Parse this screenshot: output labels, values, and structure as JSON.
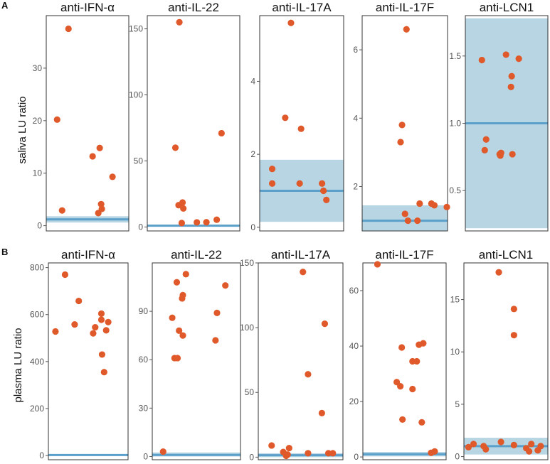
{
  "colors": {
    "point": "#e0592a",
    "band": "#b7d5e2",
    "line": "#5b9fcb",
    "frame": "#333333"
  },
  "chart_data": [
    {
      "panel": "A",
      "title": "anti-IFN-α",
      "type": "scatter",
      "ylabel": "saliva LU ratio",
      "ylim": [
        -1,
        40
      ],
      "yticks": [
        0,
        10,
        20,
        30
      ],
      "threshold": 1.2,
      "band": [
        0.6,
        1.8
      ],
      "points": [
        {
          "x": 0.13,
          "y": 20.2
        },
        {
          "x": 0.29,
          "y": 37.5
        },
        {
          "x": 0.2,
          "y": 2.9
        },
        {
          "x": 0.63,
          "y": 13.2
        },
        {
          "x": 0.73,
          "y": 14.8
        },
        {
          "x": 0.91,
          "y": 9.3
        },
        {
          "x": 0.75,
          "y": 4.1
        },
        {
          "x": 0.76,
          "y": 3.2
        },
        {
          "x": 0.71,
          "y": 2.4
        }
      ]
    },
    {
      "panel": "A",
      "title": "anti-IL-22",
      "type": "scatter",
      "ylim": [
        -3,
        160
      ],
      "yticks": [
        0,
        50,
        100,
        150
      ],
      "threshold": 1.0,
      "band": [
        0.2,
        1.8
      ],
      "points": [
        {
          "x": 0.38,
          "y": 155.0
        },
        {
          "x": 0.91,
          "y": 71.0
        },
        {
          "x": 0.33,
          "y": 60.0
        },
        {
          "x": 0.42,
          "y": 18.5
        },
        {
          "x": 0.37,
          "y": 16.5
        },
        {
          "x": 0.43,
          "y": 14.0
        },
        {
          "x": 0.41,
          "y": 3.0
        },
        {
          "x": 0.6,
          "y": 3.5
        },
        {
          "x": 0.72,
          "y": 3.6
        },
        {
          "x": 0.85,
          "y": 5.5
        }
      ]
    },
    {
      "panel": "A",
      "title": "anti-IL-17A",
      "type": "scatter",
      "ylim": [
        -0.1,
        5.8
      ],
      "yticks": [
        0,
        2,
        4
      ],
      "threshold": 1.0,
      "band": [
        0.15,
        1.85
      ],
      "points": [
        {
          "x": 0.41,
          "y": 5.6
        },
        {
          "x": 0.33,
          "y": 3.0
        },
        {
          "x": 0.55,
          "y": 2.7
        },
        {
          "x": 0.15,
          "y": 1.6
        },
        {
          "x": 0.15,
          "y": 1.2
        },
        {
          "x": 0.53,
          "y": 1.2
        },
        {
          "x": 0.84,
          "y": 1.2
        },
        {
          "x": 0.86,
          "y": 1.0
        },
        {
          "x": 0.9,
          "y": 0.75
        }
      ]
    },
    {
      "panel": "A",
      "title": "anti-IL-17F",
      "type": "scatter",
      "ylim": [
        0.7,
        7.0
      ],
      "yticks": [
        2,
        4,
        6
      ],
      "threshold": 1.0,
      "band": [
        0.55,
        1.45
      ],
      "points": [
        {
          "x": 0.58,
          "y": 6.6
        },
        {
          "x": 0.52,
          "y": 3.8
        },
        {
          "x": 0.5,
          "y": 3.3
        },
        {
          "x": 0.56,
          "y": 1.2
        },
        {
          "x": 0.6,
          "y": 1.0
        },
        {
          "x": 0.73,
          "y": 1.0
        },
        {
          "x": 0.76,
          "y": 1.5
        },
        {
          "x": 0.92,
          "y": 1.5
        },
        {
          "x": 0.96,
          "y": 1.45
        },
        {
          "x": 1.13,
          "y": 1.4
        }
      ]
    },
    {
      "panel": "A",
      "title": "anti-LCN1",
      "type": "scatter",
      "ylim": [
        0.2,
        1.8
      ],
      "yticks": [
        0.5,
        1.0,
        1.5
      ],
      "threshold": 1.0,
      "band": [
        0.22,
        1.78
      ],
      "points": [
        {
          "x": 0.21,
          "y": 1.47
        },
        {
          "x": 0.55,
          "y": 1.51
        },
        {
          "x": 0.73,
          "y": 1.48
        },
        {
          "x": 0.63,
          "y": 1.35
        },
        {
          "x": 0.62,
          "y": 1.27
        },
        {
          "x": 0.27,
          "y": 0.88
        },
        {
          "x": 0.25,
          "y": 0.8
        },
        {
          "x": 0.48,
          "y": 0.78
        },
        {
          "x": 0.46,
          "y": 0.77
        },
        {
          "x": 0.64,
          "y": 0.77
        },
        {
          "x": 0.47,
          "y": 0.76
        }
      ]
    },
    {
      "panel": "B",
      "title": "anti-IFN-α",
      "type": "scatter",
      "ylabel": "plasma LU ratio",
      "ylim": [
        -18,
        820
      ],
      "yticks": [
        0,
        200,
        400,
        600,
        800
      ],
      "threshold": 2.0,
      "band": [
        0,
        4
      ],
      "points": [
        {
          "x": 0.22,
          "y": 770
        },
        {
          "x": 0.42,
          "y": 658
        },
        {
          "x": 0.75,
          "y": 604
        },
        {
          "x": 0.75,
          "y": 578
        },
        {
          "x": 0.36,
          "y": 558
        },
        {
          "x": 0.66,
          "y": 546
        },
        {
          "x": 0.85,
          "y": 568
        },
        {
          "x": 0.82,
          "y": 533
        },
        {
          "x": 0.08,
          "y": 528
        },
        {
          "x": 0.63,
          "y": 520
        },
        {
          "x": 0.76,
          "y": 430
        },
        {
          "x": 0.79,
          "y": 355
        }
      ]
    },
    {
      "panel": "B",
      "title": "anti-IL-22",
      "type": "scatter",
      "ylim": [
        -2,
        120
      ],
      "yticks": [
        0,
        30,
        60,
        90
      ],
      "threshold": 1.0,
      "band": [
        0,
        2.5
      ],
      "points": [
        {
          "x": 0.42,
          "y": 113
        },
        {
          "x": 0.3,
          "y": 108
        },
        {
          "x": 0.94,
          "y": 106
        },
        {
          "x": 0.38,
          "y": 100
        },
        {
          "x": 0.37,
          "y": 98
        },
        {
          "x": 0.83,
          "y": 89
        },
        {
          "x": 0.24,
          "y": 86
        },
        {
          "x": 0.33,
          "y": 78
        },
        {
          "x": 0.38,
          "y": 75
        },
        {
          "x": 0.81,
          "y": 72
        },
        {
          "x": 0.27,
          "y": 61
        },
        {
          "x": 0.31,
          "y": 61
        },
        {
          "x": 0.12,
          "y": 3
        }
      ]
    },
    {
      "panel": "B",
      "title": "anti-IL-17A",
      "type": "scatter",
      "ylim": [
        -2,
        150
      ],
      "yticks": [
        0,
        50,
        100,
        150
      ],
      "threshold": 1.5,
      "band": [
        0,
        3
      ],
      "points": [
        {
          "x": 0.59,
          "y": 143
        },
        {
          "x": 0.89,
          "y": 103
        },
        {
          "x": 0.66,
          "y": 64
        },
        {
          "x": 0.85,
          "y": 34
        },
        {
          "x": 0.16,
          "y": 9
        },
        {
          "x": 0.4,
          "y": 7
        },
        {
          "x": 0.32,
          "y": 4
        },
        {
          "x": 0.38,
          "y": 2
        },
        {
          "x": 0.36,
          "y": 1
        },
        {
          "x": 0.66,
          "y": 3
        },
        {
          "x": 0.94,
          "y": 3
        },
        {
          "x": 1.0,
          "y": 3
        }
      ]
    },
    {
      "panel": "B",
      "title": "anti-IL-17F",
      "type": "scatter",
      "ylim": [
        -1,
        70
      ],
      "yticks": [
        0,
        20,
        40,
        60
      ],
      "threshold": 1.0,
      "band": [
        0.2,
        1.8
      ],
      "points": [
        {
          "x": 0.18,
          "y": 69.5
        },
        {
          "x": 0.52,
          "y": 39.5
        },
        {
          "x": 0.82,
          "y": 41
        },
        {
          "x": 0.76,
          "y": 40.5
        },
        {
          "x": 0.67,
          "y": 34.5
        },
        {
          "x": 0.73,
          "y": 34.5
        },
        {
          "x": 0.45,
          "y": 27
        },
        {
          "x": 0.5,
          "y": 25.5
        },
        {
          "x": 0.67,
          "y": 24.5
        },
        {
          "x": 0.53,
          "y": 13.5
        },
        {
          "x": 0.8,
          "y": 12.5
        },
        {
          "x": 0.93,
          "y": 1.5
        },
        {
          "x": 0.98,
          "y": 2
        }
      ]
    },
    {
      "panel": "B",
      "title": "anti-LCN1",
      "type": "scatter",
      "ylim": [
        -0.3,
        18.5
      ],
      "yticks": [
        0,
        5,
        10,
        15
      ],
      "threshold": 1.0,
      "band": [
        0.2,
        1.8
      ],
      "points": [
        {
          "x": 0.46,
          "y": 17.6
        },
        {
          "x": 0.67,
          "y": 14.1
        },
        {
          "x": 0.67,
          "y": 11.6
        },
        {
          "x": 0.04,
          "y": 0.9
        },
        {
          "x": 0.11,
          "y": 1.2
        },
        {
          "x": 0.25,
          "y": 1.0
        },
        {
          "x": 0.28,
          "y": 0.7
        },
        {
          "x": 0.49,
          "y": 1.4
        },
        {
          "x": 0.67,
          "y": 1.1
        },
        {
          "x": 0.84,
          "y": 0.8
        },
        {
          "x": 0.91,
          "y": 1.2
        },
        {
          "x": 0.88,
          "y": 0.5
        },
        {
          "x": 1.0,
          "y": 0.6
        },
        {
          "x": 1.04,
          "y": 1.0
        }
      ]
    }
  ],
  "panel_labels": {
    "a": "A",
    "b": "B"
  }
}
